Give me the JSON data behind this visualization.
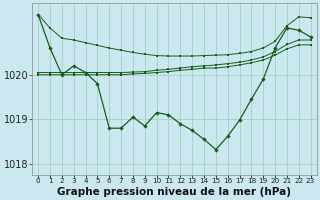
{
  "bg_color": "#cbe8f0",
  "grid_color": "#a8d5c8",
  "line_color": "#1a5c1a",
  "x_labels": [
    "0",
    "1",
    "2",
    "3",
    "4",
    "5",
    "6",
    "7",
    "8",
    "9",
    "10",
    "11",
    "12",
    "13",
    "14",
    "15",
    "16",
    "17",
    "18",
    "19",
    "20",
    "21",
    "22",
    "23"
  ],
  "ylim": [
    1017.75,
    1021.6
  ],
  "yticks": [
    1018,
    1019,
    1020
  ],
  "main_line": [
    1021.35,
    1020.6,
    1020.0,
    1020.2,
    1020.05,
    1019.8,
    1018.8,
    1018.8,
    1019.05,
    1018.85,
    1019.15,
    1019.1,
    1018.9,
    1018.75,
    1018.55,
    1018.32,
    1018.62,
    1018.98,
    1019.45,
    1019.9,
    1020.6,
    1021.05,
    1021.0,
    1020.85
  ],
  "line_top": [
    1021.35,
    1021.05,
    1020.82,
    1020.78,
    1020.72,
    1020.66,
    1020.6,
    1020.55,
    1020.5,
    1020.46,
    1020.43,
    1020.42,
    1020.42,
    1020.42,
    1020.43,
    1020.44,
    1020.45,
    1020.48,
    1020.52,
    1020.6,
    1020.75,
    1021.1,
    1021.3,
    1021.28
  ],
  "line_mid_high": [
    1020.05,
    1020.05,
    1020.05,
    1020.05,
    1020.05,
    1020.05,
    1020.05,
    1020.05,
    1020.06,
    1020.07,
    1020.1,
    1020.12,
    1020.15,
    1020.18,
    1020.2,
    1020.22,
    1020.25,
    1020.28,
    1020.33,
    1020.4,
    1020.52,
    1020.68,
    1020.78,
    1020.78
  ],
  "line_mid_low": [
    1020.0,
    1020.0,
    1020.0,
    1020.0,
    1020.0,
    1020.0,
    1020.0,
    1020.0,
    1020.02,
    1020.03,
    1020.05,
    1020.07,
    1020.1,
    1020.12,
    1020.15,
    1020.15,
    1020.18,
    1020.22,
    1020.27,
    1020.33,
    1020.44,
    1020.58,
    1020.67,
    1020.67
  ],
  "xlabel": "Graphe pression niveau de la mer (hPa)",
  "label_fontsize": 7,
  "xlabel_fontsize": 7.5
}
